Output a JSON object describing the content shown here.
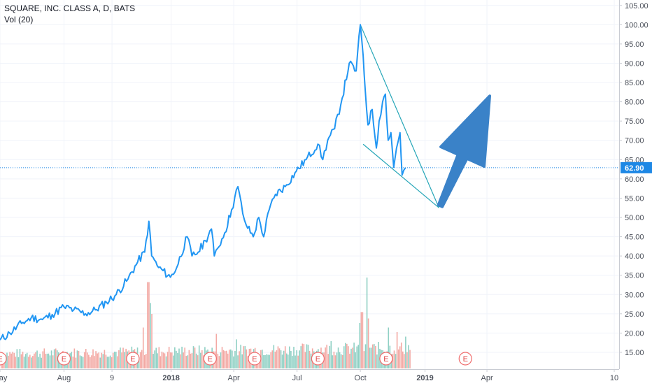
{
  "legend": {
    "symbol": "SQUARE, INC. CLASS A, D, BATS",
    "volume": "Vol (20)"
  },
  "chart_data": {
    "type": "line",
    "title": "SQUARE, INC. CLASS A, D, BATS",
    "price_axis": {
      "ticks": [
        "15.00",
        "20.00",
        "25.00",
        "30.00",
        "35.00",
        "40.00",
        "45.00",
        "50.00",
        "55.00",
        "60.00",
        "65.00",
        "70.00",
        "75.00",
        "80.00",
        "85.00",
        "90.00",
        "95.00",
        "100.00",
        "105.00"
      ],
      "ylim": [
        13,
        105.5
      ]
    },
    "time_axis": {
      "start": "2017-05-01",
      "end": "2019-10-08",
      "ticks": [
        {
          "date": "2017-05-01",
          "label": "May",
          "bold": false
        },
        {
          "date": "2017-08-01",
          "label": "Aug",
          "bold": false
        },
        {
          "date": "2017-10-09",
          "label": "9",
          "bold": false
        },
        {
          "date": "2018-01-02",
          "label": "2018",
          "bold": true
        },
        {
          "date": "2018-04-02",
          "label": "Apr",
          "bold": false
        },
        {
          "date": "2018-07-02",
          "label": "Jul",
          "bold": false
        },
        {
          "date": "2018-10-01",
          "label": "Oct",
          "bold": false
        },
        {
          "date": "2019-01-02",
          "label": "2019",
          "bold": true
        },
        {
          "date": "2019-04-01",
          "label": "Apr",
          "bold": false
        },
        {
          "date": "2019-10-01",
          "label": "10",
          "bold": false
        }
      ]
    },
    "last_price": {
      "value": 62.9,
      "label": "62.90",
      "color": "#1e88e5"
    },
    "series": [
      {
        "type": "line",
        "color": "#2196f3",
        "points": [
          [
            "2017-05-01",
            18.2
          ],
          [
            "2017-05-15",
            20.0
          ],
          [
            "2017-06-01",
            22.5
          ],
          [
            "2017-06-15",
            24.0
          ],
          [
            "2017-07-01",
            23.5
          ],
          [
            "2017-07-15",
            24.8
          ],
          [
            "2017-08-01",
            26.8
          ],
          [
            "2017-08-15",
            26.0
          ],
          [
            "2017-09-01",
            25.0
          ],
          [
            "2017-09-15",
            26.0
          ],
          [
            "2017-10-01",
            28.0
          ],
          [
            "2017-10-15",
            30.0
          ],
          [
            "2017-11-01",
            34.0
          ],
          [
            "2017-11-15",
            38.5
          ],
          [
            "2017-11-25",
            41.0
          ],
          [
            "2017-12-01",
            49.0
          ],
          [
            "2017-12-05",
            40.0
          ],
          [
            "2017-12-15",
            37.0
          ],
          [
            "2018-01-01",
            34.5
          ],
          [
            "2018-01-10",
            37.0
          ],
          [
            "2018-01-25",
            45.0
          ],
          [
            "2018-02-01",
            40.0
          ],
          [
            "2018-02-10",
            41.0
          ],
          [
            "2018-02-20",
            44.0
          ],
          [
            "2018-03-01",
            47.0
          ],
          [
            "2018-03-05",
            40.0
          ],
          [
            "2018-03-10",
            42.0
          ],
          [
            "2018-03-20",
            46.0
          ],
          [
            "2018-03-30",
            52.0
          ],
          [
            "2018-04-08",
            58.0
          ],
          [
            "2018-04-15",
            51.0
          ],
          [
            "2018-04-20",
            48.0
          ],
          [
            "2018-04-30",
            45.0
          ],
          [
            "2018-05-08",
            50.0
          ],
          [
            "2018-05-15",
            45.0
          ],
          [
            "2018-05-23",
            52.0
          ],
          [
            "2018-06-01",
            56.0
          ],
          [
            "2018-06-15",
            58.0
          ],
          [
            "2018-07-01",
            62.0
          ],
          [
            "2018-07-15",
            65.0
          ],
          [
            "2018-08-01",
            69.0
          ],
          [
            "2018-08-08",
            65.0
          ],
          [
            "2018-08-15",
            70.0
          ],
          [
            "2018-08-25",
            73.0
          ],
          [
            "2018-09-05",
            81.0
          ],
          [
            "2018-09-15",
            90.0
          ],
          [
            "2018-09-25",
            88.0
          ],
          [
            "2018-10-01",
            100.0
          ],
          [
            "2018-10-05",
            92.0
          ],
          [
            "2018-10-08",
            83.0
          ],
          [
            "2018-10-12",
            74.0
          ],
          [
            "2018-10-18",
            78.0
          ],
          [
            "2018-10-24",
            68.0
          ],
          [
            "2018-10-28",
            75.0
          ],
          [
            "2018-11-02",
            80.0
          ],
          [
            "2018-11-06",
            82.0
          ],
          [
            "2018-11-10",
            70.0
          ],
          [
            "2018-11-14",
            72.0
          ],
          [
            "2018-11-18",
            63.0
          ],
          [
            "2018-11-22",
            68.0
          ],
          [
            "2018-11-27",
            72.0
          ],
          [
            "2018-11-30",
            61.0
          ],
          [
            "2018-12-05",
            62.9
          ]
        ]
      }
    ],
    "annotations": [
      {
        "type": "trendline",
        "from": [
          "2018-10-01",
          100.0
        ],
        "to": [
          "2019-01-22",
          52.5
        ],
        "color": "#26a6b8"
      },
      {
        "type": "trendline",
        "from": [
          "2018-10-05",
          69.0
        ],
        "to": [
          "2019-01-22",
          52.5
        ],
        "color": "#26a6b8"
      },
      {
        "type": "arrow",
        "from": [
          "2019-01-24",
          53.0
        ],
        "to": [
          "2019-04-05",
          81.5
        ],
        "color": "#3a82c8"
      }
    ],
    "earnings_markers": [
      "2017-05-01",
      "2017-08-01",
      "2017-11-08",
      "2018-02-27",
      "2018-05-02",
      "2018-08-01",
      "2018-11-07",
      "2019-03-01"
    ],
    "volume": {
      "colors": {
        "up": "#8fd0c4",
        "down": "#f3a9a4"
      },
      "scale_max": 1.0,
      "spikes": [
        [
          "2017-11-29",
          0.95
        ],
        [
          "2017-12-01",
          0.72
        ],
        [
          "2017-12-04",
          0.6
        ],
        [
          "2017-11-22",
          0.45
        ],
        [
          "2018-03-07",
          0.38
        ],
        [
          "2018-04-05",
          0.32
        ],
        [
          "2018-08-20",
          0.3
        ],
        [
          "2018-09-30",
          0.5
        ],
        [
          "2018-10-03",
          0.62
        ],
        [
          "2018-10-10",
          1.0
        ],
        [
          "2018-10-12",
          0.55
        ],
        [
          "2018-11-09",
          0.45
        ],
        [
          "2018-11-22",
          0.4
        ],
        [
          "2018-12-04",
          0.35
        ]
      ],
      "last_date": "2018-12-11",
      "base": 0.12
    }
  }
}
